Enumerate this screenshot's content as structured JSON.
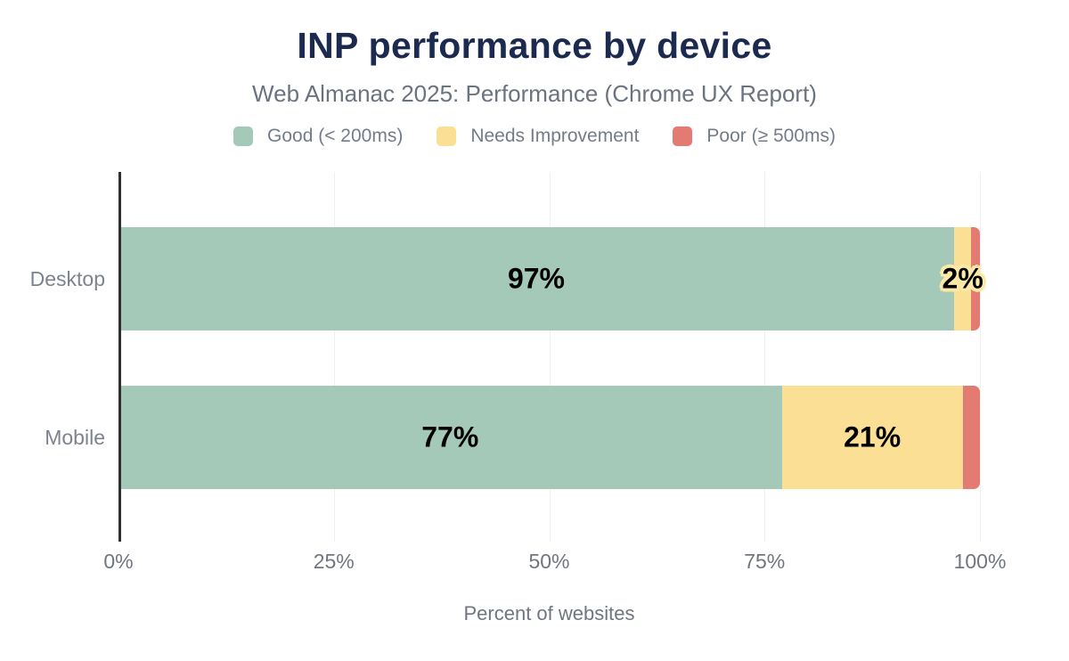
{
  "chart_data": {
    "type": "bar",
    "orientation": "horizontal",
    "stacked": true,
    "title": "INP performance by device",
    "subtitle": "Web Almanac 2025: Performance (Chrome UX Report)",
    "xlabel": "Percent of websites",
    "categories": [
      "Desktop",
      "Mobile"
    ],
    "series": [
      {
        "name": "Good (< 200ms)",
        "color": "#a5c9b8",
        "values": [
          97,
          77
        ]
      },
      {
        "name": "Needs Improvement",
        "color": "#fbdf95",
        "values": [
          2,
          21
        ]
      },
      {
        "name": "Poor (≥ 500ms)",
        "color": "#e47b73",
        "values": [
          1,
          2
        ]
      }
    ],
    "bar_labels": [
      [
        {
          "text": "97%",
          "halo": false
        },
        {
          "text": "2%",
          "halo": true
        },
        {
          "text": "",
          "halo": false
        }
      ],
      [
        {
          "text": "77%",
          "halo": false
        },
        {
          "text": "21%",
          "halo": false
        },
        {
          "text": "",
          "halo": false
        }
      ]
    ],
    "xlim": [
      0,
      100
    ],
    "xticks": [
      0,
      25,
      50,
      75,
      100
    ],
    "xtick_labels": [
      "0%",
      "25%",
      "50%",
      "75%",
      "100%"
    ],
    "grid": "vertical",
    "legend_position": "top"
  },
  "colors": {
    "background": "#ffffff",
    "title": "#1b2a4e",
    "subtitle": "#6b737f",
    "axis_text": "#6f7680",
    "category_text": "#7c838f",
    "legend_text": "#747c89",
    "bar_label": "#000000",
    "label_halo": "#fce9a8",
    "axis_line": "#2f2f2f",
    "gridline": "#f0f0f0"
  }
}
